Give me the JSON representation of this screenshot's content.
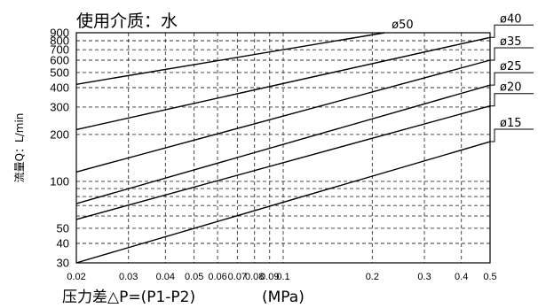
{
  "chart_data": {
    "type": "line",
    "title": "使用介质：水",
    "xlabel": "压力差△P=(P1-P2)",
    "xunit": "(MPa)",
    "ylabel": "流量Q：L/min",
    "xscale": "log",
    "yscale": "log",
    "xlim": [
      0.02,
      0.5
    ],
    "ylim": [
      30,
      900
    ],
    "grid": true,
    "x_ticks": [
      0.02,
      0.03,
      0.04,
      0.05,
      0.06,
      0.07,
      0.08,
      0.09,
      0.1,
      0.2,
      0.3,
      0.4,
      0.5
    ],
    "x_tick_labels": [
      "0.02",
      "0.03",
      "0.04",
      "0.05",
      "0.06",
      "0.07",
      "0.08",
      "0.09",
      "0.1",
      "0.2",
      "0.3",
      "0.4",
      "0.5"
    ],
    "y_ticks": [
      30,
      40,
      50,
      100,
      200,
      300,
      400,
      500,
      600,
      700,
      800,
      900
    ],
    "y_tick_labels": [
      "30",
      "40",
      "50",
      "100",
      "200",
      "300",
      "400",
      "500",
      "600",
      "700",
      "800",
      "900"
    ],
    "y_minor_gridlines": [
      60,
      70,
      80,
      90
    ],
    "series": [
      {
        "name": "ø50",
        "x": [
          0.02,
          0.22
        ],
        "y": [
          420,
          900
        ]
      },
      {
        "name": "ø40",
        "x": [
          0.02,
          0.5
        ],
        "y": [
          215,
          840
        ]
      },
      {
        "name": "ø35",
        "x": [
          0.02,
          0.5
        ],
        "y": [
          115,
          600
        ]
      },
      {
        "name": "ø25",
        "x": [
          0.02,
          0.5
        ],
        "y": [
          72,
          415
        ]
      },
      {
        "name": "ø20",
        "x": [
          0.02,
          0.5
        ],
        "y": [
          57,
          305
        ]
      },
      {
        "name": "ø15",
        "x": [
          0.02,
          0.5
        ],
        "y": [
          30,
          180
        ]
      }
    ]
  }
}
